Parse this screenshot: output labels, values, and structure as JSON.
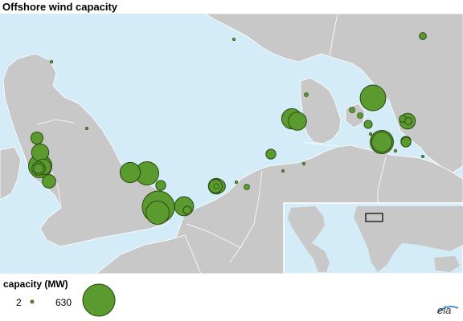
{
  "title": "Offshore wind capacity",
  "legend": {
    "title": "capacity (MW)",
    "min_label": "2",
    "max_label": "630",
    "min_value": 2,
    "max_value": 630
  },
  "logo_text": "eia",
  "colors": {
    "water": "#d3ecf8",
    "land": "#c8c8c8",
    "border": "#ffffff",
    "bubble_fill": "#5a9a2e",
    "bubble_stroke": "#2a4a12"
  },
  "markers": [
    {
      "site": "north-sea-a",
      "capacity_mw": 5
    },
    {
      "site": "shetland",
      "capacity_mw": 2
    },
    {
      "site": "baltic-ne",
      "capacity_mw": 30
    },
    {
      "site": "solway-a",
      "capacity_mw": 180
    },
    {
      "site": "solway-b",
      "capacity_mw": 90
    },
    {
      "site": "liverpool-a",
      "capacity_mw": 330
    },
    {
      "site": "liverpool-b",
      "capacity_mw": 150
    },
    {
      "site": "liverpool-c",
      "capacity_mw": 110
    },
    {
      "site": "wales-a",
      "capacity_mw": 110
    },
    {
      "site": "wales-b",
      "capacity_mw": 60
    },
    {
      "site": "tees",
      "capacity_mw": 2
    },
    {
      "site": "lincs-a",
      "capacity_mw": 250
    },
    {
      "site": "lincs-b",
      "capacity_mw": 330
    },
    {
      "site": "wash",
      "capacity_mw": 60
    },
    {
      "site": "thames-a",
      "capacity_mw": 630
    },
    {
      "site": "thames-b",
      "capacity_mw": 330
    },
    {
      "site": "thames-c",
      "capacity_mw": 220
    },
    {
      "site": "thames-d",
      "capacity_mw": 40
    },
    {
      "site": "belgium-a",
      "capacity_mw": 150
    },
    {
      "site": "belgium-b",
      "capacity_mw": 15
    },
    {
      "site": "netherlands-a",
      "capacity_mw": 110
    },
    {
      "site": "netherlands-b",
      "capacity_mw": 110
    },
    {
      "site": "ijsselmeer",
      "capacity_mw": 20
    },
    {
      "site": "wadden",
      "capacity_mw": 5
    },
    {
      "site": "germany-a",
      "capacity_mw": 2
    },
    {
      "site": "germany-b",
      "capacity_mw": 2
    },
    {
      "site": "horns-rev",
      "capacity_mw": 60
    },
    {
      "site": "denmark-w-a",
      "capacity_mw": 250
    },
    {
      "site": "denmark-w-b",
      "capacity_mw": 200
    },
    {
      "site": "anholt",
      "capacity_mw": 400
    },
    {
      "site": "skagerrak",
      "capacity_mw": 10
    },
    {
      "site": "kattegat",
      "capacity_mw": 20
    },
    {
      "site": "samso",
      "capacity_mw": 20
    },
    {
      "site": "funen",
      "capacity_mw": 5
    },
    {
      "site": "baltic-a",
      "capacity_mw": 30
    },
    {
      "site": "baltic-b",
      "capacity_mw": 30
    },
    {
      "site": "nysted",
      "capacity_mw": 5
    },
    {
      "site": "rodsand-a",
      "capacity_mw": 330
    },
    {
      "site": "rodsand-b",
      "capacity_mw": 250
    },
    {
      "site": "kalmar",
      "capacity_mw": 40
    },
    {
      "site": "lillgrund",
      "capacity_mw": 150
    },
    {
      "site": "middelgrunden",
      "capacity_mw": 60
    },
    {
      "site": "bornholm",
      "capacity_mw": 2
    },
    {
      "site": "baltic-s",
      "capacity_mw": 60
    }
  ]
}
